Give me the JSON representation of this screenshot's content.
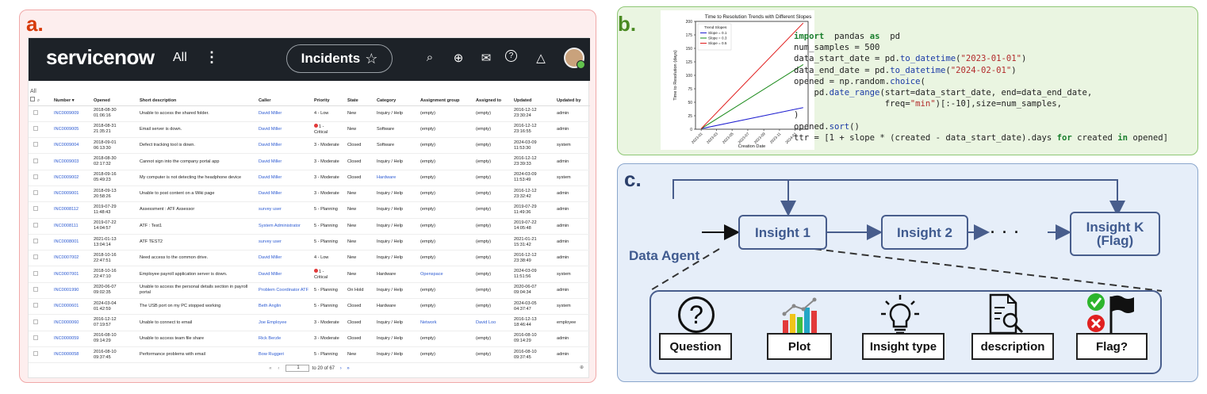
{
  "panels": {
    "a": "a.",
    "b": "b.",
    "c": "c."
  },
  "servicenow": {
    "logo": "servicenow",
    "all": "All",
    "dots": "⋮",
    "module": "Incidents",
    "star": "☆",
    "icons": [
      "search-icon",
      "globe-icon",
      "chat-icon",
      "help-icon",
      "bell-icon"
    ],
    "icon_glyphs": [
      "⌕",
      "⊕",
      "✉",
      "?",
      "△"
    ],
    "list_label": "All",
    "columns": [
      "Number ▾",
      "Opened",
      "Short description",
      "Caller",
      "Priority",
      "State",
      "Category",
      "Assignment group",
      "Assigned to",
      "Updated",
      "Updated by"
    ],
    "rows": [
      [
        "INC0009009",
        "2018-08-30\n01:06:16",
        "Unable to access the shared folder.",
        "David Miller",
        "4 - Low",
        "New",
        "Inquiry / Help",
        "(empty)",
        "(empty)",
        "2016-12-12\n23:30:24",
        "admin"
      ],
      [
        "INC0009005",
        "2018-08-31\n21:35:21",
        "Email server is down.",
        "David Miller",
        "1 -\nCritical",
        "New",
        "Software",
        "(empty)",
        "(empty)",
        "2016-12-12\n23:16:55",
        "admin"
      ],
      [
        "INC0009004",
        "2018-09-01\n06:13:30",
        "Defect tracking tool is down.",
        "David Miller",
        "3 - Moderate",
        "Closed",
        "Software",
        "(empty)",
        "(empty)",
        "2024-03-09\n11:53:30",
        "system"
      ],
      [
        "INC0009003",
        "2018-08-30\n02:17:32",
        "Cannot sign into the company portal app",
        "David Miller",
        "3 - Moderate",
        "Closed",
        "Inquiry / Help",
        "(empty)",
        "(empty)",
        "2016-12-12\n23:39:33",
        "admin"
      ],
      [
        "INC0009002",
        "2018-09-16\n05:49:23",
        "My computer is not detecting the headphone device",
        "David Miller",
        "3 - Moderate",
        "Closed",
        "Hardware",
        "(empty)",
        "(empty)",
        "2024-03-09\n11:53:49",
        "system"
      ],
      [
        "INC0009001",
        "2018-09-13\n20:58:26",
        "Unable to post content on a Wiki page",
        "David Miller",
        "3 - Moderate",
        "New",
        "Inquiry / Help",
        "(empty)",
        "(empty)",
        "2016-12-12\n23:32:42",
        "admin"
      ],
      [
        "INC0008112",
        "2019-07-29\n11:48:43",
        "Assessment : ATF Assessor",
        "survey user",
        "5 - Planning",
        "New",
        "Inquiry / Help",
        "(empty)",
        "(empty)",
        "2019-07-29\n11:49:36",
        "admin"
      ],
      [
        "INC0008111",
        "2019-07-22\n14:04:57",
        "ATF : Test1",
        "System Administrator",
        "5 - Planning",
        "New",
        "Inquiry / Help",
        "(empty)",
        "(empty)",
        "2019-07-22\n14:05:48",
        "admin"
      ],
      [
        "INC0008001",
        "2021-01-13\n13:04:14",
        "ATF TEST2",
        "survey user",
        "5 - Planning",
        "New",
        "Inquiry / Help",
        "(empty)",
        "(empty)",
        "2021-01-21\n15:31:42",
        "admin"
      ],
      [
        "INC0007002",
        "2018-10-16\n22:47:51",
        "Need access to the common drive.",
        "David Miller",
        "4 - Low",
        "New",
        "Inquiry / Help",
        "(empty)",
        "(empty)",
        "2016-12-12\n23:38:49",
        "admin"
      ],
      [
        "INC0007001",
        "2018-10-16\n22:47:10",
        "Employee payroll application server is down.",
        "David Miller",
        "1 -\nCritical",
        "New",
        "Hardware",
        "Openspace",
        "(empty)",
        "2024-03-09\n11:51:56",
        "system"
      ],
      [
        "INC0001990",
        "2020-06-07\n09:02:35",
        "Unable to access the personal details section in payroll portal",
        "Problem Coordinator ATF",
        "5 - Planning",
        "On Hold",
        "Inquiry / Help",
        "(empty)",
        "(empty)",
        "2020-06-07\n09:04:34",
        "admin"
      ],
      [
        "INC0000601",
        "2024-03-04\n01:42:59",
        "The USB port on my PC stopped working",
        "Beth Anglin",
        "5 - Planning",
        "Closed",
        "Hardware",
        "(empty)",
        "(empty)",
        "2024-03-05\n04:37:47",
        "system"
      ],
      [
        "INC0000060",
        "2016-12-12\n07:19:57",
        "Unable to connect to email",
        "Joe Employee",
        "3 - Moderate",
        "Closed",
        "Inquiry / Help",
        "Network",
        "David Loo",
        "2016-12-13\n18:46:44",
        "employee"
      ],
      [
        "INC0000059",
        "2016-08-10\n09:14:29",
        "Unable to access team file share",
        "Rick Berzle",
        "3 - Moderate",
        "Closed",
        "Inquiry / Help",
        "(empty)",
        "(empty)",
        "2016-08-10\n09:14:29",
        "admin"
      ],
      [
        "INC0000058",
        "2016-08-10\n09:37:45",
        "Performance problems with email",
        "Bow Ruggeri",
        "5 - Planning",
        "New",
        "Inquiry / Help",
        "(empty)",
        "(empty)",
        "2016-08-10\n09:37:45",
        "admin"
      ]
    ],
    "pager_first": "«",
    "pager_prev": "‹",
    "pager_page": "1",
    "pager_text": "to 20 of 67",
    "pager_next": "›",
    "pager_last": "»",
    "corner_glyph": "⊕"
  },
  "chart_data": {
    "type": "line",
    "title": "Time to Resolution Trends with Different Slopes",
    "xlabel": "Creation Date",
    "ylabel": "Time to Resolution (days)",
    "x_ticks": [
      "2023-01",
      "2023-03",
      "2023-05",
      "2023-07",
      "2023-09",
      "2023-11",
      "2024-01"
    ],
    "ylim": [
      0,
      200
    ],
    "y_ticks": [
      0,
      25,
      50,
      75,
      100,
      125,
      150,
      175,
      200
    ],
    "legend_title": "Trend Slopes",
    "legend_position": "top-left",
    "series": [
      {
        "name": "Slope = 0.1",
        "color": "#1f1fd0",
        "x": [
          "2023-01-01",
          "2024-02-01"
        ],
        "y": [
          1,
          40
        ]
      },
      {
        "name": "Slope = 0.3",
        "color": "#1a8a1a",
        "x": [
          "2023-01-01",
          "2024-02-01"
        ],
        "y": [
          1,
          120
        ]
      },
      {
        "name": "Slope = 0.5",
        "color": "#e01a1a",
        "x": [
          "2023-01-01",
          "2024-02-01"
        ],
        "y": [
          1,
          197
        ]
      }
    ]
  },
  "code_lines": [
    [
      [
        "kw",
        "import"
      ],
      [
        "",
        "  pandas "
      ],
      [
        "kw",
        "as"
      ],
      [
        "",
        "  pd"
      ]
    ],
    [
      [
        "",
        "num_samples = 500"
      ]
    ],
    [
      [
        "",
        "data_start_date = pd."
      ],
      [
        "fn",
        "to_datetime"
      ],
      [
        "",
        "("
      ],
      [
        "str",
        "\"2023-01-01\""
      ],
      [
        "",
        ")"
      ]
    ],
    [
      [
        "",
        "data_end_date = pd."
      ],
      [
        "fn",
        "to_datetime"
      ],
      [
        "",
        "("
      ],
      [
        "str",
        "\"2024-02-01\""
      ],
      [
        "",
        ")"
      ]
    ],
    [
      [
        "",
        "opened = np.random."
      ],
      [
        "fn",
        "choice"
      ],
      [
        "",
        "("
      ]
    ],
    [
      [
        "",
        "    pd."
      ],
      [
        "fn",
        "date_range"
      ],
      [
        "",
        "(start=data_start_date, end=data_end_date,"
      ]
    ],
    [
      [
        "",
        "                  freq="
      ],
      [
        "str",
        "\"min\""
      ],
      [
        "",
        ")[:-10],size=num_samples,"
      ]
    ],
    [
      [
        "",
        ")"
      ]
    ],
    [
      [
        "",
        "opened."
      ],
      [
        "fn",
        "sort"
      ],
      [
        "",
        "()"
      ]
    ],
    [
      [
        "",
        "ttr = [1 + slope * (created - data_start_date).days "
      ],
      [
        "kw",
        "for"
      ],
      [
        "",
        ""
      ],
      [
        "",
        ""
      ],
      [
        "",
        ""
      ],
      [
        "",
        ""
      ],
      [
        "",
        ""
      ],
      [
        "",
        ""
      ],
      [
        "",
        ""
      ],
      [
        "",
        ""
      ],
      [
        "",
        ""
      ],
      [
        "",
        ""
      ],
      [
        "",
        ""
      ],
      [
        "",
        ""
      ],
      [
        "",
        ""
      ],
      [
        "",
        ""
      ]
    ]
  ],
  "code_last_line": {
    "a": "ttr = [1 + slope * (created - data_start_date).days ",
    "kw1": "for",
    "b": " created ",
    "kw2": "in",
    "c": " opened]"
  },
  "diagram": {
    "insight1": "Insight 1",
    "insight2": "Insight 2",
    "ellipsis": "· · ·",
    "insightk_line1": "Insight K",
    "insightk_line2": "(Flag)",
    "agent": "Data Agent",
    "cards": [
      "Question",
      "Plot",
      "Insight type",
      "description",
      "Flag?"
    ],
    "card_icons": [
      "question-icon",
      "bar-chart-icon",
      "lightbulb-icon",
      "document-search-icon",
      "flag-check-icon"
    ],
    "question_glyph": "?"
  }
}
